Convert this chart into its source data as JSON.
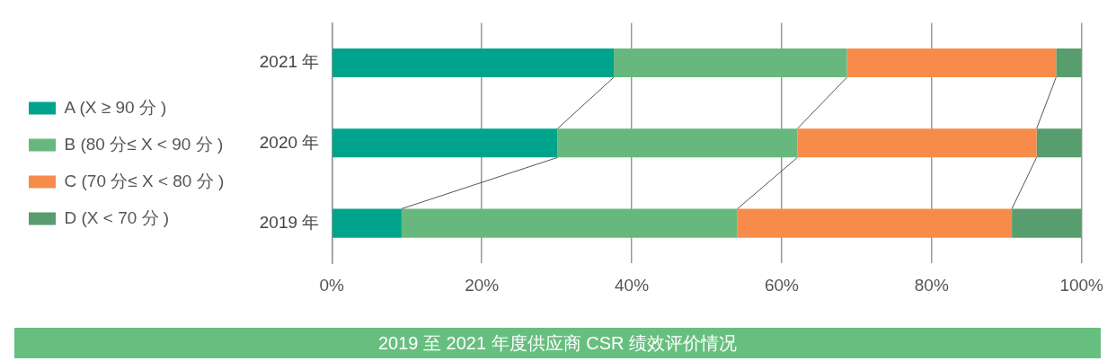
{
  "chart_data": {
    "type": "bar",
    "orientation": "horizontal",
    "stacked": true,
    "title": "2019 至 2021 年度供应商 CSR 绩效评价情况",
    "categories": [
      "2021 年",
      "2020 年",
      "2019 年"
    ],
    "series": [
      {
        "name": "A (X ≥ 90 分 )",
        "color": "#00a38b",
        "values": [
          37.6,
          30.1,
          9.3
        ]
      },
      {
        "name": "B (80 分≤ X < 90 分 )",
        "color": "#67b87e",
        "values": [
          31.1,
          32.0,
          44.8
        ]
      },
      {
        "name": "C (70 分≤ X < 80 分 )",
        "color": "#f68b4a",
        "values": [
          27.9,
          31.9,
          36.6
        ]
      },
      {
        "name": "D (X < 70 分 )",
        "color": "#579d6d",
        "values": [
          3.4,
          6.0,
          9.3
        ]
      }
    ],
    "xlim": [
      0,
      100
    ],
    "xticks": [
      {
        "value": 0,
        "label": "0%"
      },
      {
        "value": 20,
        "label": "20%"
      },
      {
        "value": 40,
        "label": "40%"
      },
      {
        "value": 60,
        "label": "60%"
      },
      {
        "value": 80,
        "label": "80%"
      },
      {
        "value": 100,
        "label": "100%"
      }
    ],
    "grid": "x",
    "legend": "left"
  }
}
